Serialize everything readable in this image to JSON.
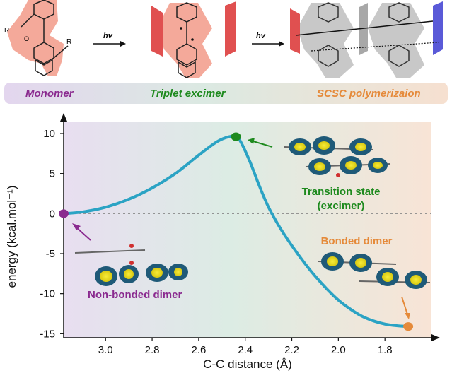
{
  "scheme": {
    "arrow_label_1": "hv",
    "arrow_label_2": "hv",
    "substituent_label": "R",
    "carbonyl_label": "O"
  },
  "stages": [
    {
      "label": "Monomer",
      "color": "#8a2a8f"
    },
    {
      "label": "Triplet excimer",
      "color": "#1e8a1e"
    },
    {
      "label": "SCSC polymerizaion",
      "color": "#e58a3a"
    }
  ],
  "colors": {
    "curve": "#2ba3c4",
    "monomer_point": "#8a2a8f",
    "ts_point": "#1e8a1e",
    "bonded_point": "#e58a3a",
    "scheme_blob": "#f29a88",
    "polymer_blob": "#c8c8c8",
    "orbital_yellow": "#f2e51a",
    "orbital_blue": "#1f5a78"
  },
  "chart_data": {
    "type": "line",
    "xlabel": "C-C distance (Å)",
    "ylabel": "energy (kcal.mol⁻¹)",
    "xlim": [
      3.18,
      1.6
    ],
    "ylim": [
      -15.5,
      11.5
    ],
    "x_inverted": true,
    "xticks": [
      3.0,
      2.8,
      2.6,
      2.4,
      2.2,
      2.0,
      1.8
    ],
    "xtick_labels": [
      "3.0",
      "2.8",
      "2.6",
      "2.4",
      "2.2",
      "2.0",
      "1.8"
    ],
    "yticks": [
      10,
      5,
      0,
      -5,
      -10,
      -15
    ],
    "ytick_labels": [
      "10",
      "5",
      "0",
      "-5",
      "-10",
      "-15"
    ],
    "reference_line": 0,
    "series": [
      {
        "x": [
          3.18,
          3.1,
          3.0,
          2.9,
          2.8,
          2.7,
          2.6,
          2.52,
          2.47,
          2.44,
          2.42,
          2.38,
          2.34,
          2.3,
          2.25,
          2.2,
          2.15,
          2.1,
          2.05,
          2.0,
          1.95,
          1.9,
          1.85,
          1.8,
          1.75,
          1.7
        ],
        "y": [
          0,
          0.2,
          0.8,
          1.8,
          3.2,
          5.0,
          7.3,
          9.0,
          9.6,
          9.6,
          9.0,
          6.5,
          3.5,
          0.8,
          -1.8,
          -4.0,
          -6.0,
          -7.8,
          -9.4,
          -10.8,
          -11.9,
          -12.8,
          -13.4,
          -13.8,
          -14.0,
          -14.1
        ]
      }
    ],
    "points": [
      {
        "name": "Non-bonded dimer",
        "x": 3.18,
        "y": 0
      },
      {
        "name": "Transition state (excimer)",
        "x": 2.44,
        "y": 9.6
      },
      {
        "name": "Bonded dimer",
        "x": 1.7,
        "y": -14.1
      }
    ],
    "annotations": {
      "non_bonded": "Non-bonded dimer",
      "ts_line1": "Transition state",
      "ts_line2": "(excimer)",
      "bonded": "Bonded dimer"
    }
  }
}
